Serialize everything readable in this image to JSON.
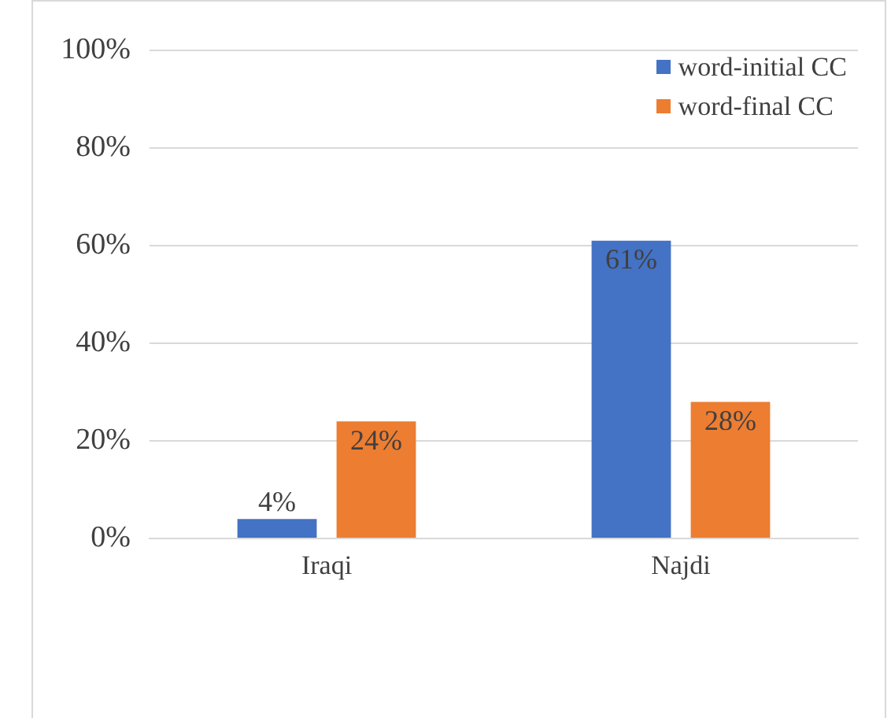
{
  "chart_data": {
    "type": "bar",
    "categories": [
      "Iraqi",
      "Najdi"
    ],
    "series": [
      {
        "name": "word-initial CC",
        "color": "#4472c4",
        "values": [
          4,
          61
        ],
        "value_labels": [
          "4%",
          "61%"
        ]
      },
      {
        "name": "word-final CC",
        "color": "#ed7d31",
        "values": [
          24,
          28
        ],
        "value_labels": [
          "24%",
          "28%"
        ]
      }
    ],
    "ylim": [
      0,
      100
    ],
    "yticks": [
      {
        "value": 0,
        "label": "0%"
      },
      {
        "value": 20,
        "label": "20%"
      },
      {
        "value": 40,
        "label": "40%"
      },
      {
        "value": 60,
        "label": "60%"
      },
      {
        "value": 80,
        "label": "80%"
      },
      {
        "value": 100,
        "label": "100%"
      }
    ],
    "grid": "y",
    "legend": "top right"
  }
}
